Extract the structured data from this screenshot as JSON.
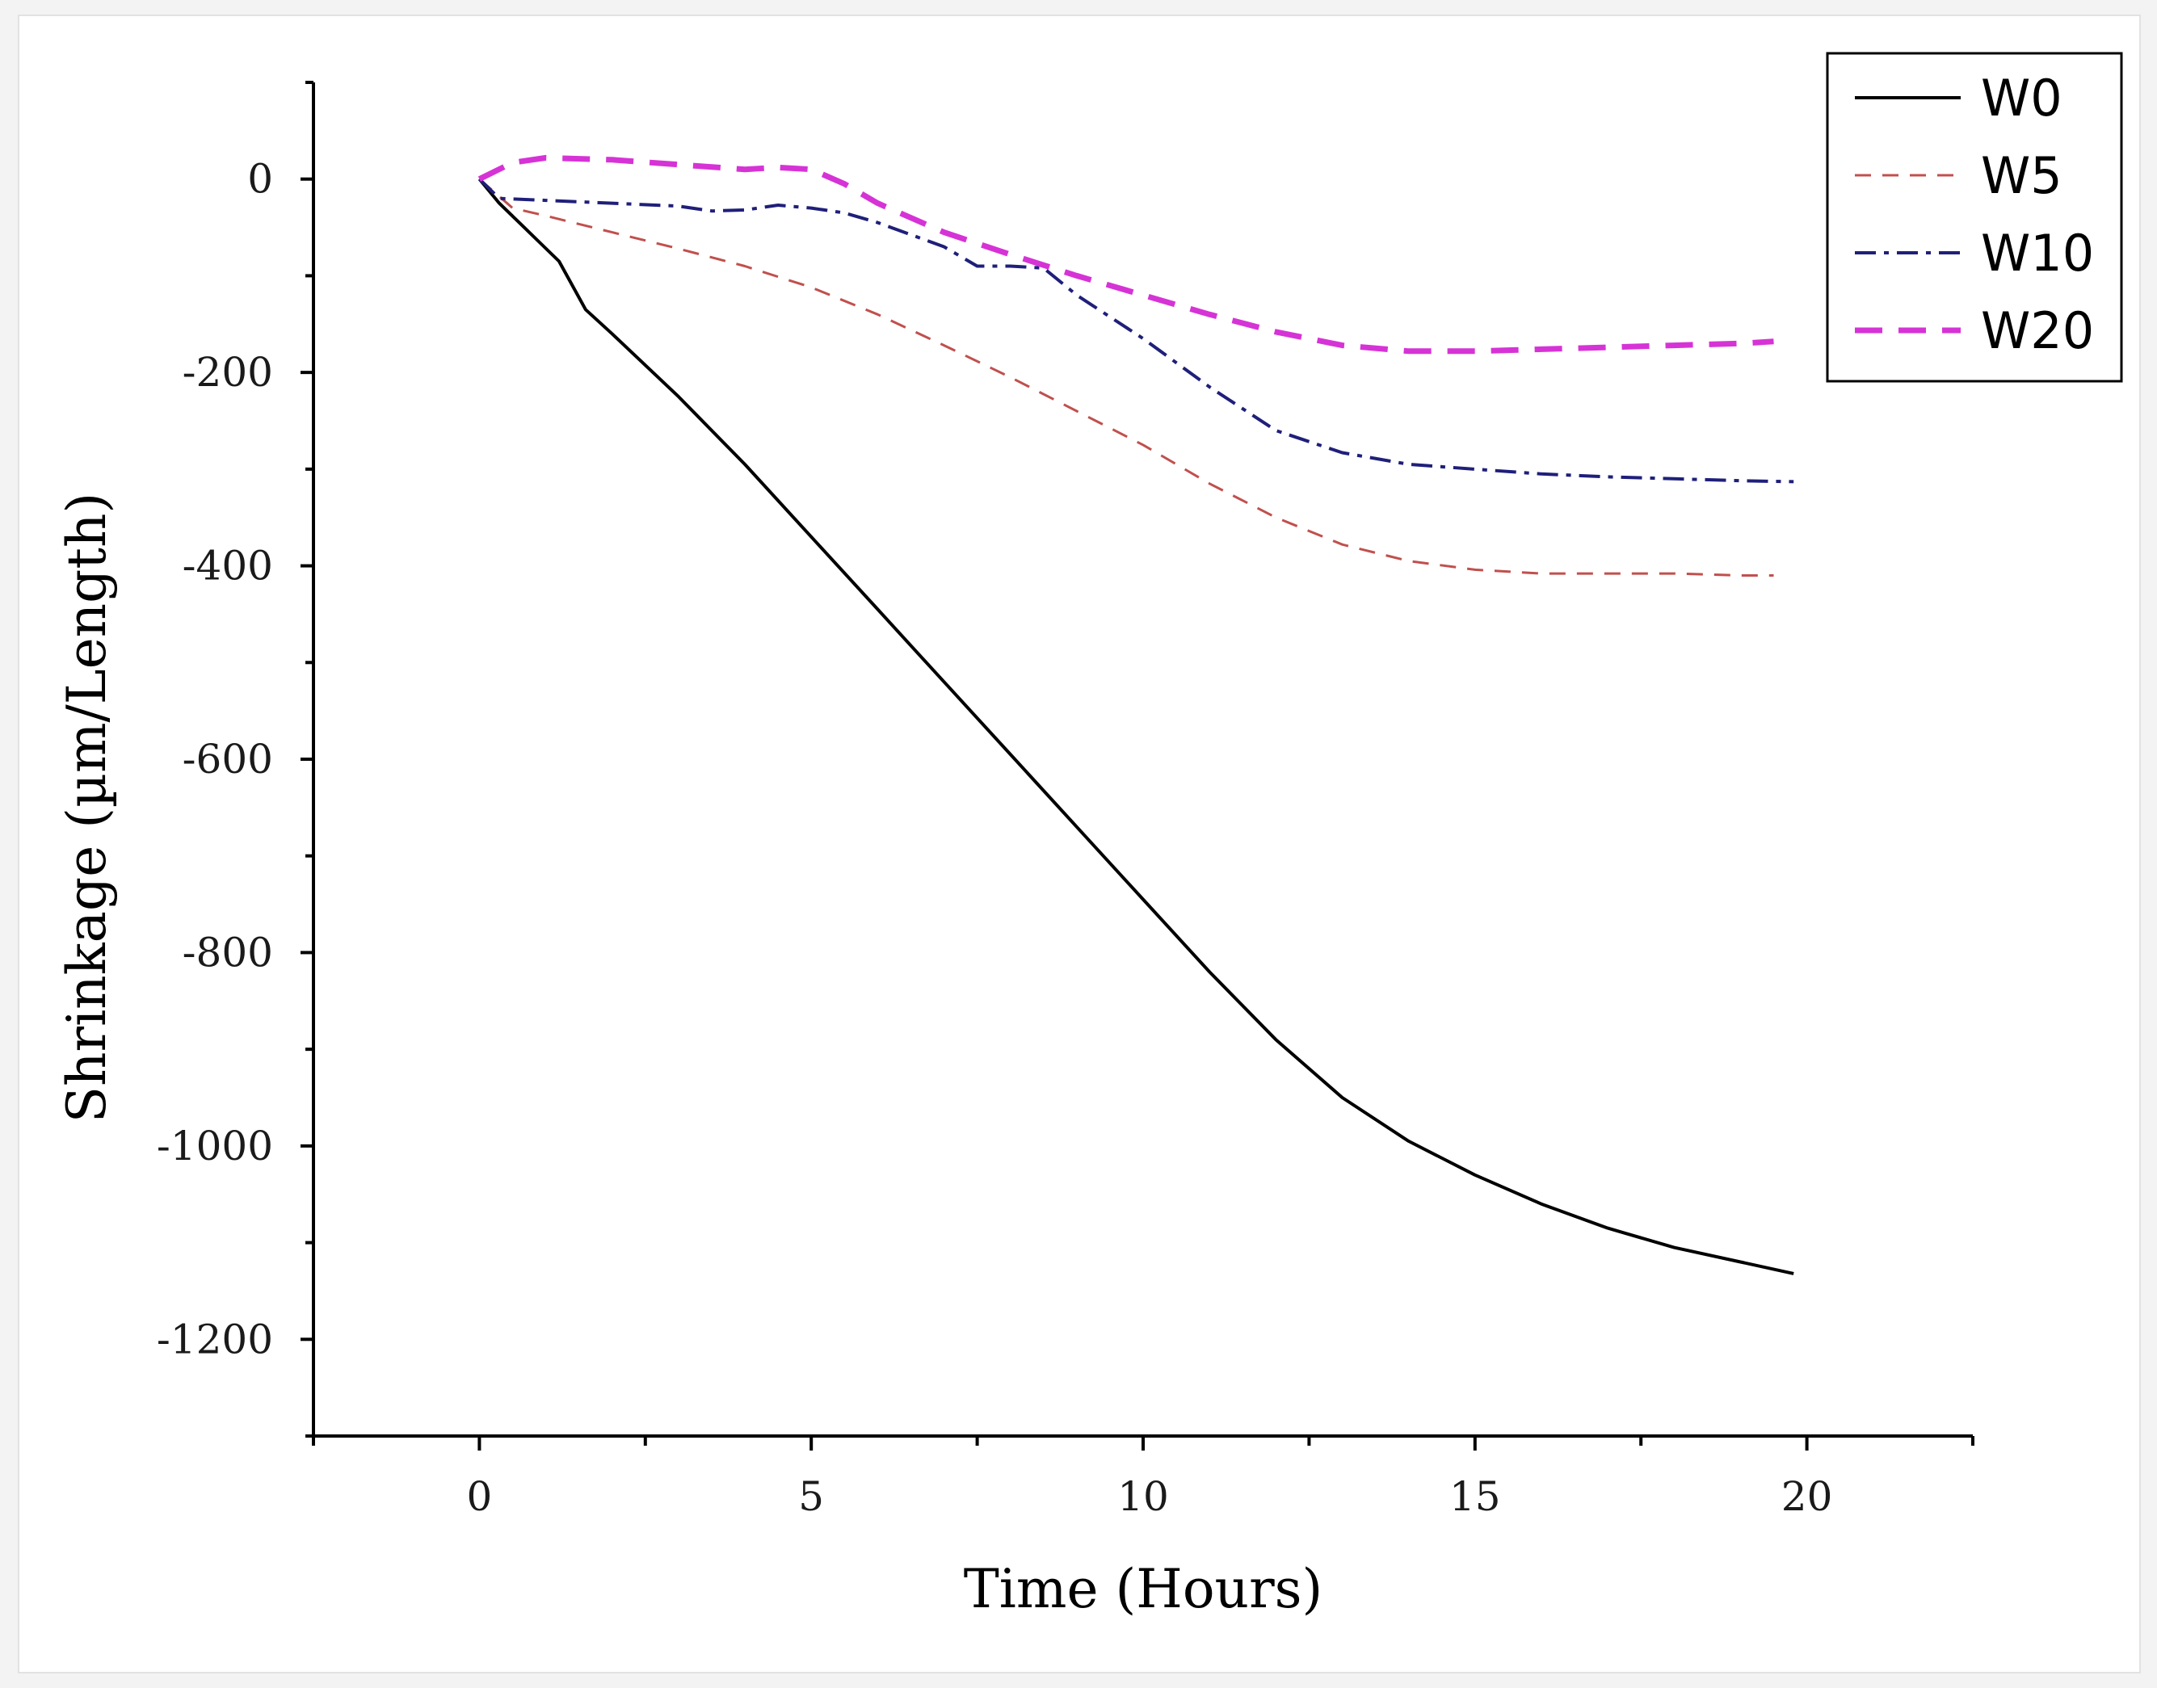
{
  "chart_data": {
    "type": "line",
    "title": "",
    "xlabel": "Time (Hours)",
    "ylabel": "Shrinkage (µm/Length)",
    "xlim": [
      -2.5,
      22.5
    ],
    "ylim": [
      -1300,
      100
    ],
    "xticks": [
      0,
      5,
      10,
      15,
      20
    ],
    "xtick_labels": [
      "0",
      "5",
      "10",
      "15",
      "20"
    ],
    "yticks": [
      0,
      -200,
      -400,
      -600,
      -800,
      -1000,
      -1200
    ],
    "ytick_labels": [
      "0",
      "-200",
      "-400",
      "-600",
      "-800",
      "-1000",
      "-1200"
    ],
    "legend_position": "top-right",
    "series": [
      {
        "name": "W0",
        "color": "#000000",
        "dash": "solid",
        "points": [
          [
            0,
            0
          ],
          [
            0.3,
            -25
          ],
          [
            0.6,
            -45
          ],
          [
            0.9,
            -65
          ],
          [
            1.2,
            -85
          ],
          [
            1.6,
            -135
          ],
          [
            2,
            -160
          ],
          [
            3,
            -225
          ],
          [
            4,
            -295
          ],
          [
            5,
            -370
          ],
          [
            6,
            -445
          ],
          [
            7,
            -520
          ],
          [
            8,
            -595
          ],
          [
            9,
            -670
          ],
          [
            10,
            -745
          ],
          [
            11,
            -820
          ],
          [
            12,
            -890
          ],
          [
            13,
            -950
          ],
          [
            14,
            -995
          ],
          [
            15,
            -1030
          ],
          [
            16,
            -1060
          ],
          [
            17,
            -1085
          ],
          [
            18,
            -1105
          ],
          [
            19,
            -1120
          ],
          [
            19.8,
            -1132
          ]
        ]
      },
      {
        "name": "W5",
        "color": "#c0504d",
        "dash": "dashed",
        "points": [
          [
            0,
            0
          ],
          [
            0.5,
            -30
          ],
          [
            1,
            -38
          ],
          [
            2,
            -55
          ],
          [
            3,
            -72
          ],
          [
            4,
            -90
          ],
          [
            5,
            -112
          ],
          [
            6,
            -140
          ],
          [
            7,
            -172
          ],
          [
            8,
            -205
          ],
          [
            9,
            -240
          ],
          [
            10,
            -275
          ],
          [
            11,
            -315
          ],
          [
            12,
            -350
          ],
          [
            13,
            -378
          ],
          [
            14,
            -395
          ],
          [
            15,
            -404
          ],
          [
            16,
            -408
          ],
          [
            17,
            -408
          ],
          [
            18,
            -408
          ],
          [
            19,
            -410
          ],
          [
            19.5,
            -410
          ]
        ]
      },
      {
        "name": "W10",
        "color": "#1f1f7a",
        "dash": "dashdot",
        "points": [
          [
            0,
            0
          ],
          [
            0.3,
            -20
          ],
          [
            1,
            -22
          ],
          [
            2,
            -25
          ],
          [
            3,
            -28
          ],
          [
            3.5,
            -33
          ],
          [
            4,
            -32
          ],
          [
            4.5,
            -27
          ],
          [
            5,
            -30
          ],
          [
            5.5,
            -35
          ],
          [
            6,
            -45
          ],
          [
            7,
            -70
          ],
          [
            7.5,
            -90
          ],
          [
            8,
            -90
          ],
          [
            8.5,
            -92
          ],
          [
            9,
            -120
          ],
          [
            10,
            -165
          ],
          [
            11,
            -215
          ],
          [
            12,
            -260
          ],
          [
            13,
            -283
          ],
          [
            14,
            -295
          ],
          [
            15,
            -300
          ],
          [
            16,
            -305
          ],
          [
            17,
            -308
          ],
          [
            18,
            -310
          ],
          [
            19,
            -312
          ],
          [
            19.8,
            -313
          ]
        ]
      },
      {
        "name": "W20",
        "color": "#d633d6",
        "dash": "longdash",
        "points": [
          [
            0,
            0
          ],
          [
            0.5,
            17
          ],
          [
            1,
            22
          ],
          [
            2,
            20
          ],
          [
            3,
            15
          ],
          [
            4,
            10
          ],
          [
            4.5,
            12
          ],
          [
            5,
            10
          ],
          [
            5.5,
            -5
          ],
          [
            6,
            -25
          ],
          [
            7,
            -55
          ],
          [
            8,
            -78
          ],
          [
            9,
            -100
          ],
          [
            10,
            -120
          ],
          [
            11,
            -140
          ],
          [
            12,
            -158
          ],
          [
            13,
            -172
          ],
          [
            14,
            -178
          ],
          [
            15,
            -178
          ],
          [
            16,
            -176
          ],
          [
            17,
            -174
          ],
          [
            18,
            -172
          ],
          [
            19,
            -170
          ],
          [
            19.5,
            -168
          ]
        ]
      }
    ]
  }
}
